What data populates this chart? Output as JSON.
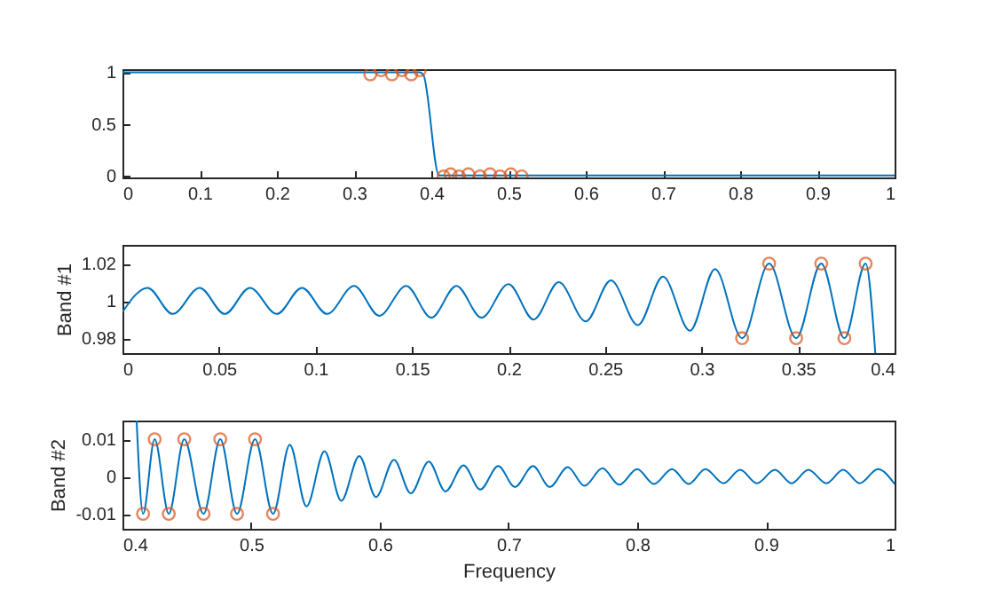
{
  "chart_data": [
    {
      "type": "line",
      "xlim": [
        0,
        1
      ],
      "xticks": [
        0,
        0.1,
        0.2,
        0.3,
        0.4,
        0.5,
        0.6,
        0.7,
        0.8,
        0.9,
        1
      ],
      "ylim": [
        -0.02,
        1.03
      ],
      "yticks": [
        0,
        0.5,
        1
      ],
      "grid": false,
      "series": [
        {
          "type": "line",
          "color": "#0072bd",
          "marker": "none",
          "x": [
            0,
            0.1,
            0.2,
            0.3,
            0.385,
            0.39,
            0.41,
            0.52,
            0.6,
            1
          ],
          "values": [
            1,
            1,
            1,
            1,
            1,
            0.97,
            0,
            0,
            0,
            0
          ]
        },
        {
          "type": "scatter",
          "color": "#d95319",
          "marker": "circle",
          "x": [
            0.321,
            0.335,
            0.349,
            0.362,
            0.374,
            0.385,
            0.416,
            0.425,
            0.436,
            0.448,
            0.463,
            0.476,
            0.489,
            0.503,
            0.517
          ],
          "values": [
            0.98,
            1.02,
            0.98,
            1.02,
            0.98,
            1.02,
            -0.01,
            0.01,
            -0.01,
            0.01,
            -0.01,
            0.01,
            -0.01,
            0.01,
            -0.01
          ]
        }
      ]
    },
    {
      "type": "line",
      "ylabel": "Band #1",
      "xlim": [
        0,
        0.4
      ],
      "xticks": [
        0,
        0.05,
        0.1,
        0.15,
        0.2,
        0.25,
        0.3,
        0.35,
        0.4
      ],
      "ylim": [
        0.972,
        1.03
      ],
      "yticks": [
        0.98,
        1,
        1.02
      ],
      "grid": false,
      "series": [
        {
          "type": "line",
          "color": "#0072bd",
          "marker": "none",
          "x": [
            0,
            0.013,
            0.026,
            0.04,
            0.053,
            0.066,
            0.08,
            0.093,
            0.106,
            0.12,
            0.133,
            0.147,
            0.16,
            0.173,
            0.186,
            0.2,
            0.213,
            0.226,
            0.24,
            0.253,
            0.267,
            0.28,
            0.294,
            0.307,
            0.321,
            0.335,
            0.349,
            0.362,
            0.374,
            0.385,
            0.39
          ],
          "values": [
            0.994,
            1.007,
            0.993,
            1.007,
            0.993,
            1.007,
            0.993,
            1.007,
            0.993,
            1.008,
            0.992,
            1.008,
            0.991,
            1.008,
            0.991,
            1.009,
            0.99,
            1.01,
            0.989,
            1.011,
            0.987,
            1.013,
            0.984,
            1.017,
            0.98,
            1.02,
            0.98,
            1.02,
            0.98,
            1.02,
            0.972
          ]
        },
        {
          "type": "scatter",
          "color": "#d95319",
          "marker": "circle",
          "x": [
            0.321,
            0.335,
            0.349,
            0.362,
            0.374,
            0.385
          ],
          "values": [
            0.98,
            1.02,
            0.98,
            1.02,
            0.98,
            1.02
          ]
        }
      ]
    },
    {
      "type": "line",
      "ylabel": "Band #2",
      "xlabel": "Frequency",
      "xlim": [
        0.4,
        1
      ],
      "xticks": [
        0.4,
        0.5,
        0.6,
        0.7,
        0.8,
        0.9,
        1
      ],
      "ylim": [
        -0.014,
        0.015
      ],
      "yticks": [
        -0.01,
        0,
        0.01
      ],
      "grid": false,
      "series": [
        {
          "type": "line",
          "color": "#0072bd",
          "marker": "none",
          "x": [
            0.411,
            0.416,
            0.425,
            0.436,
            0.448,
            0.463,
            0.476,
            0.489,
            0.503,
            0.517,
            0.53,
            0.543,
            0.557,
            0.57,
            0.584,
            0.597,
            0.611,
            0.624,
            0.638,
            0.651,
            0.665,
            0.678,
            0.692,
            0.705,
            0.719,
            0.732,
            0.746,
            0.759,
            0.773,
            0.786,
            0.8,
            0.813,
            0.827,
            0.84,
            0.853,
            0.867,
            0.88,
            0.893,
            0.907,
            0.92,
            0.933,
            0.947,
            0.96,
            0.973,
            0.987,
            1
          ],
          "values": [
            0.015,
            -0.01,
            0.01,
            -0.01,
            0.01,
            -0.01,
            0.01,
            -0.01,
            0.01,
            -0.01,
            0.0085,
            -0.008,
            0.0068,
            -0.0065,
            0.0055,
            -0.0055,
            0.0045,
            -0.0045,
            0.004,
            -0.004,
            0.003,
            -0.0035,
            0.0028,
            -0.0028,
            0.0028,
            -0.0028,
            0.0025,
            -0.0025,
            0.0022,
            -0.0022,
            0.002,
            -0.002,
            0.002,
            -0.002,
            0.002,
            -0.0018,
            0.0018,
            -0.0018,
            0.0018,
            -0.0018,
            0.0018,
            -0.0018,
            0.0018,
            -0.0018,
            0.002,
            -0.002
          ]
        },
        {
          "type": "scatter",
          "color": "#d95319",
          "marker": "circle",
          "x": [
            0.416,
            0.425,
            0.436,
            0.448,
            0.463,
            0.476,
            0.489,
            0.503,
            0.517
          ],
          "values": [
            -0.01,
            0.01,
            -0.01,
            0.01,
            -0.01,
            0.01,
            -0.01,
            0.01,
            -0.01
          ]
        }
      ]
    }
  ]
}
